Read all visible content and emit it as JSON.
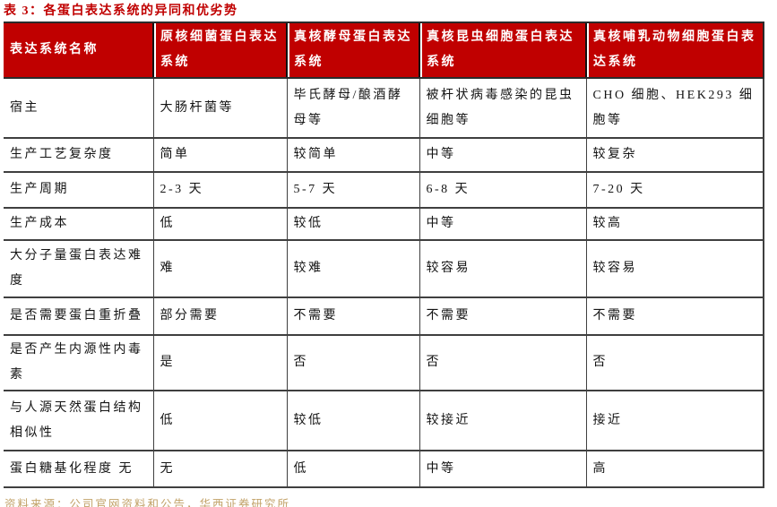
{
  "title": "表 3：各蛋白表达系统的异同和优劣势",
  "table": {
    "columns": [
      "表达系统名称",
      "原核细菌蛋白表达系统",
      "真核酵母蛋白表达系统",
      "真核昆虫细胞蛋白表达系统",
      "真核哺乳动物细胞蛋白表达系统"
    ],
    "rows": [
      {
        "label": "宿主",
        "values": [
          "大肠杆菌等",
          "毕氏酵母/酿酒酵母等",
          "被杆状病毒感染的昆虫细胞等",
          "CHO 细胞、HEK293 细胞等"
        ]
      },
      {
        "label": "生产工艺复杂度",
        "values": [
          "简单",
          "较简单",
          "中等",
          "较复杂"
        ]
      },
      {
        "label": "生产周期",
        "values": [
          "2-3 天",
          "5-7 天",
          "6-8 天",
          "7-20 天"
        ]
      },
      {
        "label": "生产成本",
        "values": [
          "低",
          "较低",
          "中等",
          "较高"
        ]
      },
      {
        "label": "大分子量蛋白表达难度",
        "values": [
          "难",
          "较难",
          "较容易",
          "较容易"
        ]
      },
      {
        "label": "是否需要蛋白重折叠",
        "values": [
          "部分需要",
          "不需要",
          "不需要",
          "不需要"
        ]
      },
      {
        "label": "是否产生内源性内毒素",
        "values": [
          "是",
          "否",
          "否",
          "否"
        ]
      },
      {
        "label": "与人源天然蛋白结构相似性",
        "values": [
          "低",
          "较低",
          "较接近",
          "接近"
        ]
      },
      {
        "label": "蛋白糖基化程度 无",
        "values": [
          "无",
          "低",
          "中等",
          "高"
        ]
      }
    ]
  },
  "footer": {
    "source": "资料来源：公司官网资料和公告，华西证券研究所"
  },
  "colors": {
    "header_background": "#c00000",
    "title_text": "#c00000",
    "source_text": "#c2a268",
    "grid_line": "#3f3f3f",
    "body_text": "#141414",
    "header_text": "#ffffff"
  }
}
